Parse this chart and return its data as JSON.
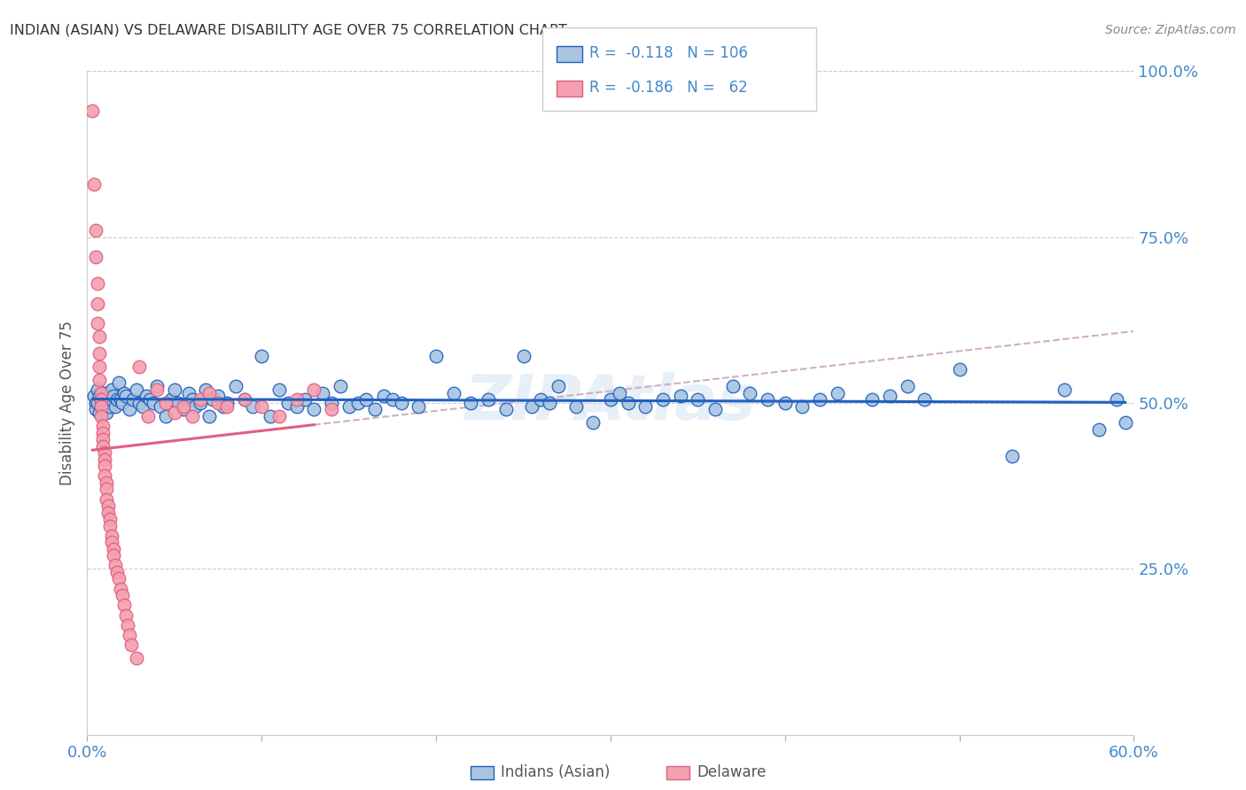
{
  "title": "INDIAN (ASIAN) VS DELAWARE DISABILITY AGE OVER 75 CORRELATION CHART",
  "source": "Source: ZipAtlas.com",
  "ylabel": "Disability Age Over 75",
  "xlabel_blue": "Indians (Asian)",
  "xlabel_pink": "Delaware",
  "xmin": 0.0,
  "xmax": 0.6,
  "ymin": 0.0,
  "ymax": 1.0,
  "yticks": [
    0.0,
    0.25,
    0.5,
    0.75,
    1.0
  ],
  "ytick_labels": [
    "",
    "25.0%",
    "50.0%",
    "75.0%",
    "100.0%"
  ],
  "xticks": [
    0.0,
    0.1,
    0.2,
    0.3,
    0.4,
    0.5,
    0.6
  ],
  "xtick_labels": [
    "0.0%",
    "",
    "",
    "",
    "",
    "",
    "60.0%"
  ],
  "blue_R": "-0.118",
  "blue_N": "106",
  "pink_R": "-0.186",
  "pink_N": "62",
  "blue_color": "#a8c4e0",
  "pink_color": "#f4a0b0",
  "blue_line_color": "#2060c0",
  "pink_line_color": "#e06080",
  "dashed_line_color": "#d0b0c0",
  "axis_color": "#4488cc",
  "grid_color": "#cccccc",
  "title_color": "#333333",
  "blue_scatter": [
    [
      0.004,
      0.51
    ],
    [
      0.005,
      0.5
    ],
    [
      0.005,
      0.49
    ],
    [
      0.006,
      0.52
    ],
    [
      0.006,
      0.5
    ],
    [
      0.007,
      0.51
    ],
    [
      0.007,
      0.485
    ],
    [
      0.008,
      0.505
    ],
    [
      0.008,
      0.495
    ],
    [
      0.009,
      0.515
    ],
    [
      0.009,
      0.49
    ],
    [
      0.01,
      0.505
    ],
    [
      0.01,
      0.495
    ],
    [
      0.011,
      0.515
    ],
    [
      0.011,
      0.485
    ],
    [
      0.012,
      0.5
    ],
    [
      0.012,
      0.51
    ],
    [
      0.013,
      0.495
    ],
    [
      0.014,
      0.52
    ],
    [
      0.014,
      0.505
    ],
    [
      0.015,
      0.51
    ],
    [
      0.016,
      0.495
    ],
    [
      0.017,
      0.505
    ],
    [
      0.018,
      0.53
    ],
    [
      0.019,
      0.505
    ],
    [
      0.02,
      0.5
    ],
    [
      0.021,
      0.515
    ],
    [
      0.022,
      0.51
    ],
    [
      0.024,
      0.49
    ],
    [
      0.026,
      0.505
    ],
    [
      0.028,
      0.52
    ],
    [
      0.03,
      0.5
    ],
    [
      0.032,
      0.495
    ],
    [
      0.034,
      0.51
    ],
    [
      0.036,
      0.505
    ],
    [
      0.038,
      0.5
    ],
    [
      0.04,
      0.525
    ],
    [
      0.042,
      0.495
    ],
    [
      0.045,
      0.48
    ],
    [
      0.048,
      0.505
    ],
    [
      0.05,
      0.52
    ],
    [
      0.052,
      0.5
    ],
    [
      0.055,
      0.49
    ],
    [
      0.058,
      0.515
    ],
    [
      0.06,
      0.505
    ],
    [
      0.062,
      0.495
    ],
    [
      0.065,
      0.5
    ],
    [
      0.068,
      0.52
    ],
    [
      0.07,
      0.48
    ],
    [
      0.072,
      0.505
    ],
    [
      0.075,
      0.51
    ],
    [
      0.078,
      0.495
    ],
    [
      0.08,
      0.5
    ],
    [
      0.085,
      0.525
    ],
    [
      0.09,
      0.505
    ],
    [
      0.095,
      0.495
    ],
    [
      0.1,
      0.57
    ],
    [
      0.105,
      0.48
    ],
    [
      0.11,
      0.52
    ],
    [
      0.115,
      0.5
    ],
    [
      0.12,
      0.495
    ],
    [
      0.125,
      0.505
    ],
    [
      0.13,
      0.49
    ],
    [
      0.135,
      0.515
    ],
    [
      0.14,
      0.5
    ],
    [
      0.145,
      0.525
    ],
    [
      0.15,
      0.495
    ],
    [
      0.155,
      0.5
    ],
    [
      0.16,
      0.505
    ],
    [
      0.165,
      0.49
    ],
    [
      0.17,
      0.51
    ],
    [
      0.175,
      0.505
    ],
    [
      0.18,
      0.5
    ],
    [
      0.19,
      0.495
    ],
    [
      0.2,
      0.57
    ],
    [
      0.21,
      0.515
    ],
    [
      0.22,
      0.5
    ],
    [
      0.23,
      0.505
    ],
    [
      0.24,
      0.49
    ],
    [
      0.25,
      0.57
    ],
    [
      0.255,
      0.495
    ],
    [
      0.26,
      0.505
    ],
    [
      0.265,
      0.5
    ],
    [
      0.27,
      0.525
    ],
    [
      0.28,
      0.495
    ],
    [
      0.29,
      0.47
    ],
    [
      0.3,
      0.505
    ],
    [
      0.305,
      0.515
    ],
    [
      0.31,
      0.5
    ],
    [
      0.32,
      0.495
    ],
    [
      0.33,
      0.505
    ],
    [
      0.34,
      0.51
    ],
    [
      0.35,
      0.505
    ],
    [
      0.36,
      0.49
    ],
    [
      0.37,
      0.525
    ],
    [
      0.38,
      0.515
    ],
    [
      0.39,
      0.505
    ],
    [
      0.4,
      0.5
    ],
    [
      0.41,
      0.495
    ],
    [
      0.42,
      0.505
    ],
    [
      0.43,
      0.515
    ],
    [
      0.45,
      0.505
    ],
    [
      0.46,
      0.51
    ],
    [
      0.47,
      0.525
    ],
    [
      0.48,
      0.505
    ],
    [
      0.5,
      0.55
    ],
    [
      0.53,
      0.42
    ],
    [
      0.56,
      0.52
    ],
    [
      0.58,
      0.46
    ],
    [
      0.59,
      0.505
    ],
    [
      0.595,
      0.47
    ]
  ],
  "pink_scatter": [
    [
      0.003,
      0.94
    ],
    [
      0.004,
      0.83
    ],
    [
      0.005,
      0.76
    ],
    [
      0.005,
      0.72
    ],
    [
      0.006,
      0.68
    ],
    [
      0.006,
      0.65
    ],
    [
      0.006,
      0.62
    ],
    [
      0.007,
      0.6
    ],
    [
      0.007,
      0.575
    ],
    [
      0.007,
      0.555
    ],
    [
      0.007,
      0.535
    ],
    [
      0.008,
      0.515
    ],
    [
      0.008,
      0.505
    ],
    [
      0.008,
      0.495
    ],
    [
      0.008,
      0.48
    ],
    [
      0.009,
      0.465
    ],
    [
      0.009,
      0.455
    ],
    [
      0.009,
      0.445
    ],
    [
      0.009,
      0.435
    ],
    [
      0.01,
      0.425
    ],
    [
      0.01,
      0.415
    ],
    [
      0.01,
      0.405
    ],
    [
      0.01,
      0.39
    ],
    [
      0.011,
      0.38
    ],
    [
      0.011,
      0.37
    ],
    [
      0.011,
      0.355
    ],
    [
      0.012,
      0.345
    ],
    [
      0.012,
      0.335
    ],
    [
      0.013,
      0.325
    ],
    [
      0.013,
      0.315
    ],
    [
      0.014,
      0.3
    ],
    [
      0.014,
      0.29
    ],
    [
      0.015,
      0.28
    ],
    [
      0.015,
      0.27
    ],
    [
      0.016,
      0.255
    ],
    [
      0.017,
      0.245
    ],
    [
      0.018,
      0.235
    ],
    [
      0.019,
      0.22
    ],
    [
      0.02,
      0.21
    ],
    [
      0.021,
      0.195
    ],
    [
      0.022,
      0.18
    ],
    [
      0.023,
      0.165
    ],
    [
      0.024,
      0.15
    ],
    [
      0.025,
      0.135
    ],
    [
      0.028,
      0.115
    ],
    [
      0.03,
      0.555
    ],
    [
      0.035,
      0.48
    ],
    [
      0.04,
      0.52
    ],
    [
      0.045,
      0.5
    ],
    [
      0.05,
      0.485
    ],
    [
      0.055,
      0.495
    ],
    [
      0.06,
      0.48
    ],
    [
      0.065,
      0.505
    ],
    [
      0.07,
      0.515
    ],
    [
      0.075,
      0.5
    ],
    [
      0.08,
      0.495
    ],
    [
      0.09,
      0.505
    ],
    [
      0.1,
      0.495
    ],
    [
      0.11,
      0.48
    ],
    [
      0.12,
      0.505
    ],
    [
      0.13,
      0.52
    ],
    [
      0.14,
      0.49
    ]
  ]
}
